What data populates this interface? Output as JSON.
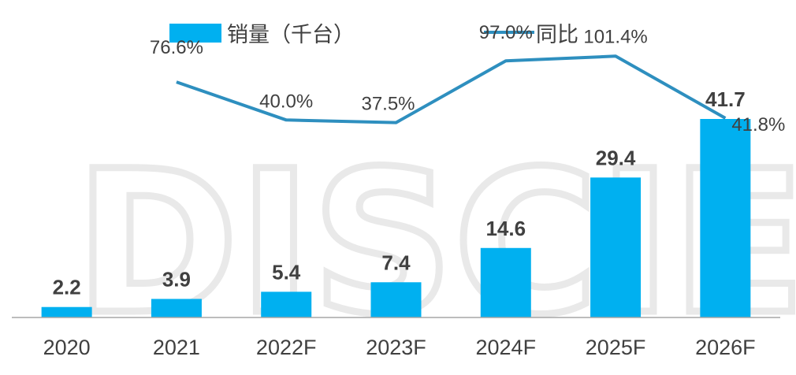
{
  "watermark": "DISCIEN",
  "legend": {
    "bar_label": "销量（千台）",
    "line_label": "同比"
  },
  "colors": {
    "bar": "#00B0F0",
    "line": "#2E8FBF",
    "axis": "#A6A6A6",
    "text": "#404040"
  },
  "chart_data": {
    "type": "bar",
    "categories": [
      "2020",
      "2021",
      "2022F",
      "2023F",
      "2024F",
      "2025F",
      "2026F"
    ],
    "series": [
      {
        "name": "销量（千台）",
        "type": "bar",
        "values": [
          2.2,
          3.9,
          5.4,
          7.4,
          14.6,
          29.4,
          41.7
        ],
        "labels": [
          "2.2",
          "3.9",
          "5.4",
          "7.4",
          "14.6",
          "29.4",
          "41.7"
        ]
      },
      {
        "name": "同比",
        "type": "line",
        "values": [
          null,
          76.6,
          40.0,
          37.5,
          97.0,
          101.4,
          41.8
        ],
        "labels": [
          null,
          "76.6%",
          "40.0%",
          "37.5%",
          "97.0%",
          "101.4%",
          "41.8%"
        ]
      }
    ],
    "ylim": [
      0,
      45
    ],
    "y2lim": [
      -150,
      110
    ],
    "grid": false,
    "legend_position": "top"
  }
}
